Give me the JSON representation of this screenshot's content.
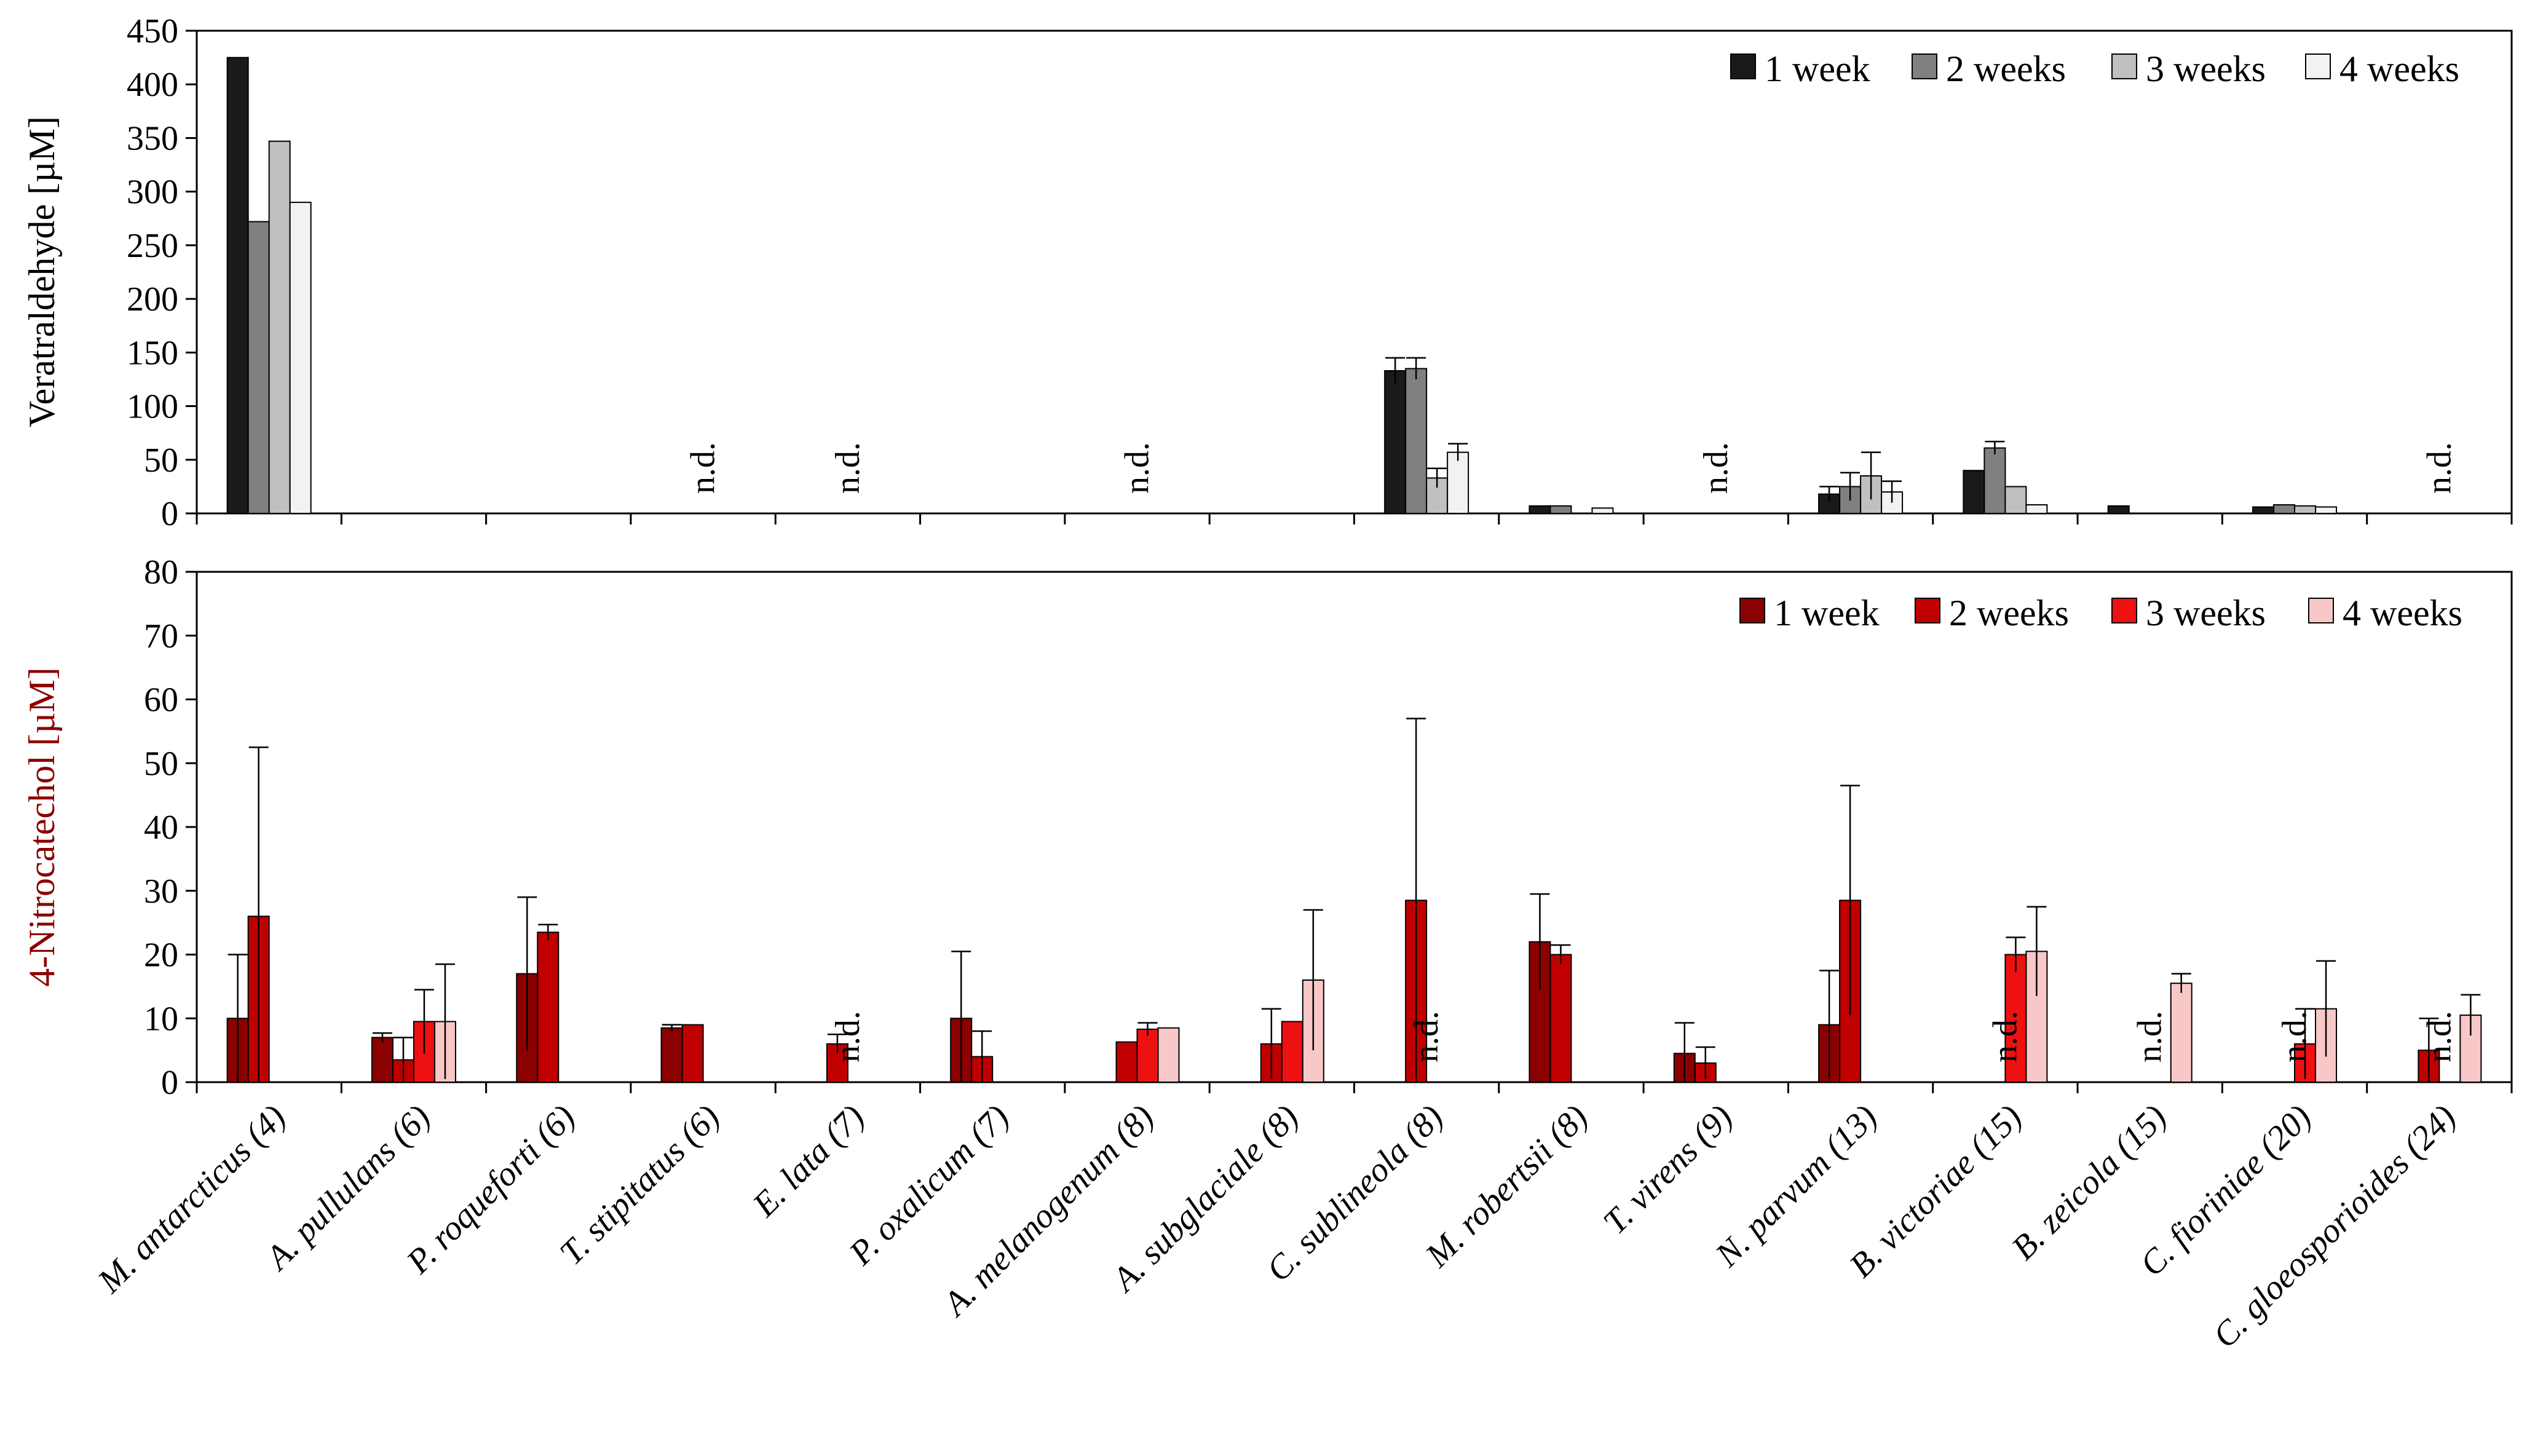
{
  "chart_data": [
    {
      "type": "bar",
      "ylabel": "Veratraldehyde [µM]",
      "ylabel_color": "#000000",
      "ylim": [
        0,
        450
      ],
      "yticks": [
        0,
        50,
        100,
        150,
        200,
        250,
        300,
        350,
        400,
        450
      ],
      "legend_position": "top-right",
      "grid": false,
      "categories": [
        "M. antarcticus (4)",
        "A. pullulans (6)",
        "P. roqueforti (6)",
        "T. stipitatus (6)",
        "E. lata (7)",
        "P. oxalicum (7)",
        "A. melanogenum (8)",
        "A. subglaciale (8)",
        "C. sublineola (8)",
        "M. robertsii (8)",
        "T. virens (9)",
        "N. parvum (13)",
        "B. victoriae (15)",
        "B. zeicola (15)",
        "C. fioriniae (20)",
        "C. gloeosporioides (24)"
      ],
      "nd_label": "n.d.",
      "nd_categories": [
        3,
        4,
        6,
        10,
        15
      ],
      "series": [
        {
          "name": "1 week",
          "color": "#1a1a1a",
          "values": [
            425,
            0,
            0,
            0,
            0,
            0,
            0,
            0,
            133,
            7,
            0,
            18,
            40,
            7,
            6,
            0
          ],
          "errors": [
            0,
            0,
            0,
            0,
            0,
            0,
            0,
            0,
            12,
            0,
            0,
            7,
            0,
            0,
            0,
            0
          ]
        },
        {
          "name": "2 weeks",
          "color": "#808080",
          "values": [
            272,
            0,
            0,
            0,
            0,
            0,
            0,
            0,
            135,
            7,
            0,
            25,
            61,
            0,
            8,
            0
          ],
          "errors": [
            0,
            0,
            0,
            0,
            0,
            0,
            0,
            0,
            10,
            0,
            0,
            13,
            6,
            0,
            0,
            0
          ]
        },
        {
          "name": "3 weeks",
          "color": "#c0c0c0",
          "values": [
            347,
            0,
            0,
            0,
            0,
            0,
            0,
            0,
            33,
            0,
            0,
            35,
            25,
            0,
            7,
            0
          ],
          "errors": [
            0,
            0,
            0,
            0,
            0,
            0,
            0,
            0,
            9,
            0,
            0,
            22,
            0,
            0,
            0,
            0
          ]
        },
        {
          "name": "4 weeks",
          "color": "#f2f2f2",
          "values": [
            290,
            0,
            0,
            0,
            0,
            0,
            0,
            0,
            57,
            5,
            0,
            20,
            8,
            0,
            6,
            0
          ],
          "errors": [
            0,
            0,
            0,
            0,
            0,
            0,
            0,
            0,
            8,
            0,
            0,
            10,
            0,
            0,
            0,
            0
          ]
        }
      ]
    },
    {
      "type": "bar",
      "ylabel": "4-Nitrocatechol [µM]",
      "ylabel_color": "#8b0000",
      "ylim": [
        0,
        80
      ],
      "yticks": [
        0,
        10,
        20,
        30,
        40,
        50,
        60,
        70,
        80
      ],
      "legend_position": "top-right",
      "grid": false,
      "categories": [
        "M. antarcticus (4)",
        "A. pullulans (6)",
        "P. roqueforti (6)",
        "T. stipitatus (6)",
        "E. lata (7)",
        "P. oxalicum (7)",
        "A. melanogenum (8)",
        "A. subglaciale (8)",
        "C. sublineola (8)",
        "M. robertsii (8)",
        "T. virens (9)",
        "N. parvum (13)",
        "B. victoriae (15)",
        "B. zeicola (15)",
        "C. fioriniae (20)",
        "C. gloeosporioides (24)"
      ],
      "nd_label": "n.d.",
      "nd_categories": [
        4,
        8,
        12,
        13,
        14,
        15
      ],
      "series": [
        {
          "name": "1 week",
          "color": "#8b0000",
          "values": [
            10,
            7,
            17,
            8.5,
            0,
            10,
            0,
            0,
            0,
            22,
            4.5,
            9,
            0,
            0,
            0,
            0
          ],
          "errors": [
            10,
            0.7,
            12,
            0.5,
            0,
            10.5,
            0,
            0,
            0,
            7.5,
            4.8,
            8.5,
            0,
            0,
            0,
            0
          ]
        },
        {
          "name": "2 weeks",
          "color": "#c00000",
          "values": [
            26,
            3.5,
            23.5,
            9,
            6,
            4,
            6.3,
            6,
            28.5,
            20,
            3,
            28.5,
            0,
            0,
            0,
            5
          ],
          "errors": [
            26.5,
            3.5,
            1.2,
            0,
            1.5,
            4,
            0,
            5.5,
            28.5,
            1.5,
            2.5,
            18,
            0,
            0,
            0,
            5
          ]
        },
        {
          "name": "3 weeks",
          "color": "#ee1111",
          "values": [
            0,
            9.5,
            0,
            0,
            0,
            0,
            8.3,
            9.5,
            0,
            0,
            0,
            0,
            20,
            0,
            6,
            0
          ],
          "errors": [
            0,
            5,
            0,
            0,
            0,
            0,
            1,
            0,
            0,
            0,
            0,
            0,
            2.7,
            0,
            5.5,
            0
          ]
        },
        {
          "name": "4 weeks",
          "color": "#f8c8c8",
          "values": [
            0,
            9.5,
            0,
            0,
            0,
            0,
            8.5,
            16,
            0,
            0,
            0,
            0,
            20.5,
            15.5,
            11.5,
            10.5
          ],
          "errors": [
            0,
            9,
            0,
            0,
            0,
            0,
            0,
            11,
            0,
            0,
            0,
            0,
            7,
            1.5,
            7.5,
            3.2
          ]
        }
      ]
    }
  ]
}
